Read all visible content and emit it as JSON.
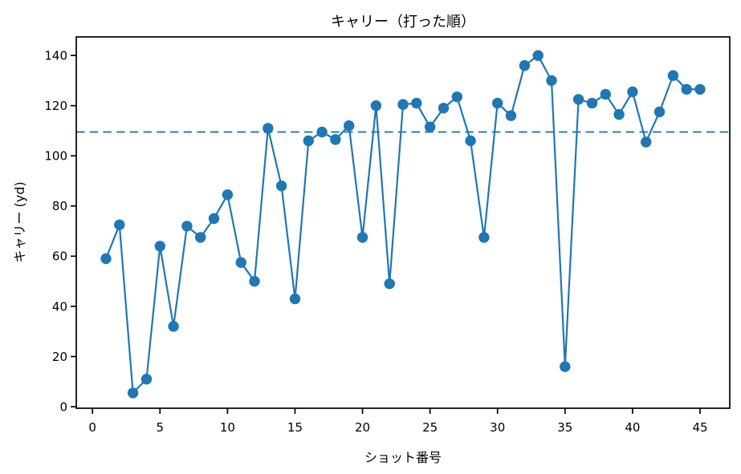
{
  "chart_data": {
    "type": "line",
    "title": "キャリー（打った順）",
    "xlabel": "ショット番号",
    "ylabel": "キャリー (yd)",
    "series": [
      {
        "name": "キャリー",
        "x": [
          1,
          2,
          3,
          4,
          5,
          6,
          7,
          8,
          9,
          10,
          11,
          12,
          13,
          14,
          15,
          16,
          17,
          18,
          19,
          20,
          21,
          22,
          23,
          24,
          25,
          26,
          27,
          28,
          29,
          30,
          31,
          32,
          33,
          34,
          35,
          36,
          37,
          38,
          39,
          40,
          41,
          42,
          43,
          44,
          45
        ],
        "values": [
          59,
          72.5,
          5.5,
          11,
          64,
          32,
          72,
          67.5,
          75,
          84.5,
          57.5,
          50,
          111,
          88,
          43,
          106,
          109.5,
          106.5,
          112,
          67.5,
          120,
          49,
          120.5,
          121,
          111.5,
          119,
          123.5,
          106,
          67.5,
          121,
          116,
          136,
          140,
          130,
          16,
          122.5,
          121,
          124.5,
          116.5,
          125.5,
          105.5,
          117.5,
          132,
          126.5,
          126.5
        ],
        "marker": "circle",
        "line_style": "solid"
      }
    ],
    "reference_line": {
      "y": 109.5,
      "style": "dashed"
    },
    "xticks": [
      0,
      5,
      10,
      15,
      20,
      25,
      30,
      35,
      40,
      45
    ],
    "yticks": [
      0,
      20,
      40,
      60,
      80,
      100,
      120,
      140
    ],
    "xlim": [
      -1.2,
      47.2
    ],
    "ylim": [
      -0.6,
      147.4
    ],
    "grid": false,
    "legend": "none",
    "line_color": "#1f77b4",
    "axis_color": "#000000",
    "background_color": "#ffffff"
  }
}
